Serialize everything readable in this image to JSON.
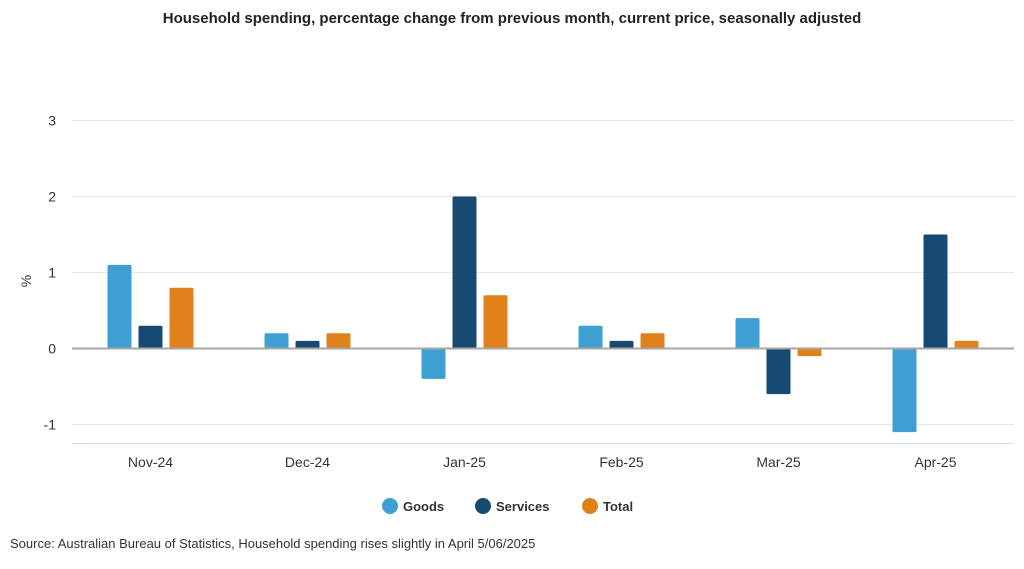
{
  "chart_data": {
    "type": "bar",
    "title": "Household spending, percentage change from previous month, current price, seasonally adjusted",
    "ylabel": "%",
    "xlabel": "",
    "categories": [
      "Nov-24",
      "Dec-24",
      "Jan-25",
      "Feb-25",
      "Mar-25",
      "Apr-25"
    ],
    "series": [
      {
        "name": "Goods",
        "color": "#3e9fd3",
        "values": [
          1.1,
          0.2,
          -0.4,
          0.3,
          0.4,
          -1.1
        ]
      },
      {
        "name": "Services",
        "color": "#164a72",
        "values": [
          0.3,
          0.1,
          2.0,
          0.1,
          -0.6,
          1.5
        ]
      },
      {
        "name": "Total",
        "color": "#e0811b",
        "values": [
          0.8,
          0.2,
          0.7,
          0.2,
          -0.1,
          0.1
        ]
      }
    ],
    "ylim": [
      -1.25,
      3
    ],
    "yticks": [
      -1,
      0,
      1,
      2,
      3
    ],
    "grid": true,
    "legend_position": "bottom-center"
  },
  "source": "Source: Australian Bureau of Statistics, Household spending rises slightly in April 5/06/2025"
}
